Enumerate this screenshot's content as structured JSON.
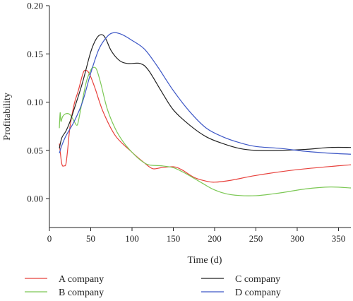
{
  "chart_data": {
    "type": "line",
    "xlabel": "Time (d)",
    "ylabel": "Profitability",
    "xlim": [
      0,
      365
    ],
    "ylim": [
      -0.03,
      0.2
    ],
    "xticks": [
      0,
      50,
      100,
      150,
      200,
      250,
      300,
      350
    ],
    "xtick_labels": [
      "0",
      "50",
      "100",
      "150",
      "200",
      "250",
      "300",
      "350"
    ],
    "yticks": [
      0.0,
      0.05,
      0.1,
      0.15,
      0.2
    ],
    "ytick_labels": [
      "0.00",
      "0.05",
      "0.10",
      "0.15",
      "0.20"
    ],
    "grid": false,
    "legend_position": "bottom",
    "series": [
      {
        "name": "A company",
        "color": "#e8413c",
        "points": [
          [
            12,
            0.057
          ],
          [
            15,
            0.036
          ],
          [
            18,
            0.034
          ],
          [
            20,
            0.036
          ],
          [
            22,
            0.05
          ],
          [
            25,
            0.075
          ],
          [
            30,
            0.098
          ],
          [
            35,
            0.112
          ],
          [
            40,
            0.128
          ],
          [
            43,
            0.133
          ],
          [
            48,
            0.13
          ],
          [
            55,
            0.115
          ],
          [
            65,
            0.09
          ],
          [
            80,
            0.065
          ],
          [
            100,
            0.048
          ],
          [
            115,
            0.037
          ],
          [
            125,
            0.031
          ],
          [
            135,
            0.032
          ],
          [
            150,
            0.033
          ],
          [
            160,
            0.03
          ],
          [
            175,
            0.022
          ],
          [
            190,
            0.018
          ],
          [
            200,
            0.017
          ],
          [
            220,
            0.019
          ],
          [
            250,
            0.024
          ],
          [
            300,
            0.03
          ],
          [
            350,
            0.034
          ],
          [
            365,
            0.035
          ]
        ]
      },
      {
        "name": "B company",
        "color": "#7cc855",
        "points": [
          [
            12,
            0.073
          ],
          [
            13,
            0.089
          ],
          [
            14,
            0.08
          ],
          [
            16,
            0.085
          ],
          [
            20,
            0.088
          ],
          [
            25,
            0.087
          ],
          [
            30,
            0.08
          ],
          [
            33,
            0.076
          ],
          [
            35,
            0.08
          ],
          [
            40,
            0.102
          ],
          [
            45,
            0.122
          ],
          [
            50,
            0.133
          ],
          [
            53,
            0.136
          ],
          [
            57,
            0.134
          ],
          [
            62,
            0.12
          ],
          [
            70,
            0.093
          ],
          [
            80,
            0.072
          ],
          [
            90,
            0.058
          ],
          [
            100,
            0.048
          ],
          [
            110,
            0.04
          ],
          [
            120,
            0.035
          ],
          [
            135,
            0.034
          ],
          [
            150,
            0.032
          ],
          [
            165,
            0.026
          ],
          [
            185,
            0.016
          ],
          [
            200,
            0.009
          ],
          [
            220,
            0.004
          ],
          [
            250,
            0.003
          ],
          [
            280,
            0.006
          ],
          [
            310,
            0.01
          ],
          [
            340,
            0.012
          ],
          [
            365,
            0.011
          ]
        ]
      },
      {
        "name": "C company",
        "color": "#222222",
        "points": [
          [
            12,
            0.052
          ],
          [
            15,
            0.063
          ],
          [
            20,
            0.07
          ],
          [
            25,
            0.08
          ],
          [
            30,
            0.093
          ],
          [
            40,
            0.12
          ],
          [
            50,
            0.152
          ],
          [
            57,
            0.166
          ],
          [
            63,
            0.17
          ],
          [
            68,
            0.166
          ],
          [
            75,
            0.153
          ],
          [
            85,
            0.143
          ],
          [
            95,
            0.14
          ],
          [
            110,
            0.14
          ],
          [
            120,
            0.133
          ],
          [
            135,
            0.112
          ],
          [
            150,
            0.092
          ],
          [
            170,
            0.076
          ],
          [
            190,
            0.064
          ],
          [
            210,
            0.057
          ],
          [
            230,
            0.052
          ],
          [
            250,
            0.05
          ],
          [
            280,
            0.05
          ],
          [
            310,
            0.051
          ],
          [
            340,
            0.053
          ],
          [
            365,
            0.053
          ]
        ]
      },
      {
        "name": "D company",
        "color": "#3d57c6",
        "points": [
          [
            12,
            0.047
          ],
          [
            15,
            0.055
          ],
          [
            20,
            0.065
          ],
          [
            30,
            0.08
          ],
          [
            40,
            0.1
          ],
          [
            50,
            0.13
          ],
          [
            60,
            0.155
          ],
          [
            70,
            0.168
          ],
          [
            78,
            0.172
          ],
          [
            88,
            0.17
          ],
          [
            100,
            0.164
          ],
          [
            115,
            0.155
          ],
          [
            130,
            0.138
          ],
          [
            150,
            0.112
          ],
          [
            170,
            0.09
          ],
          [
            190,
            0.073
          ],
          [
            210,
            0.064
          ],
          [
            230,
            0.058
          ],
          [
            250,
            0.054
          ],
          [
            280,
            0.052
          ],
          [
            310,
            0.049
          ],
          [
            340,
            0.047
          ],
          [
            365,
            0.046
          ]
        ]
      }
    ]
  }
}
